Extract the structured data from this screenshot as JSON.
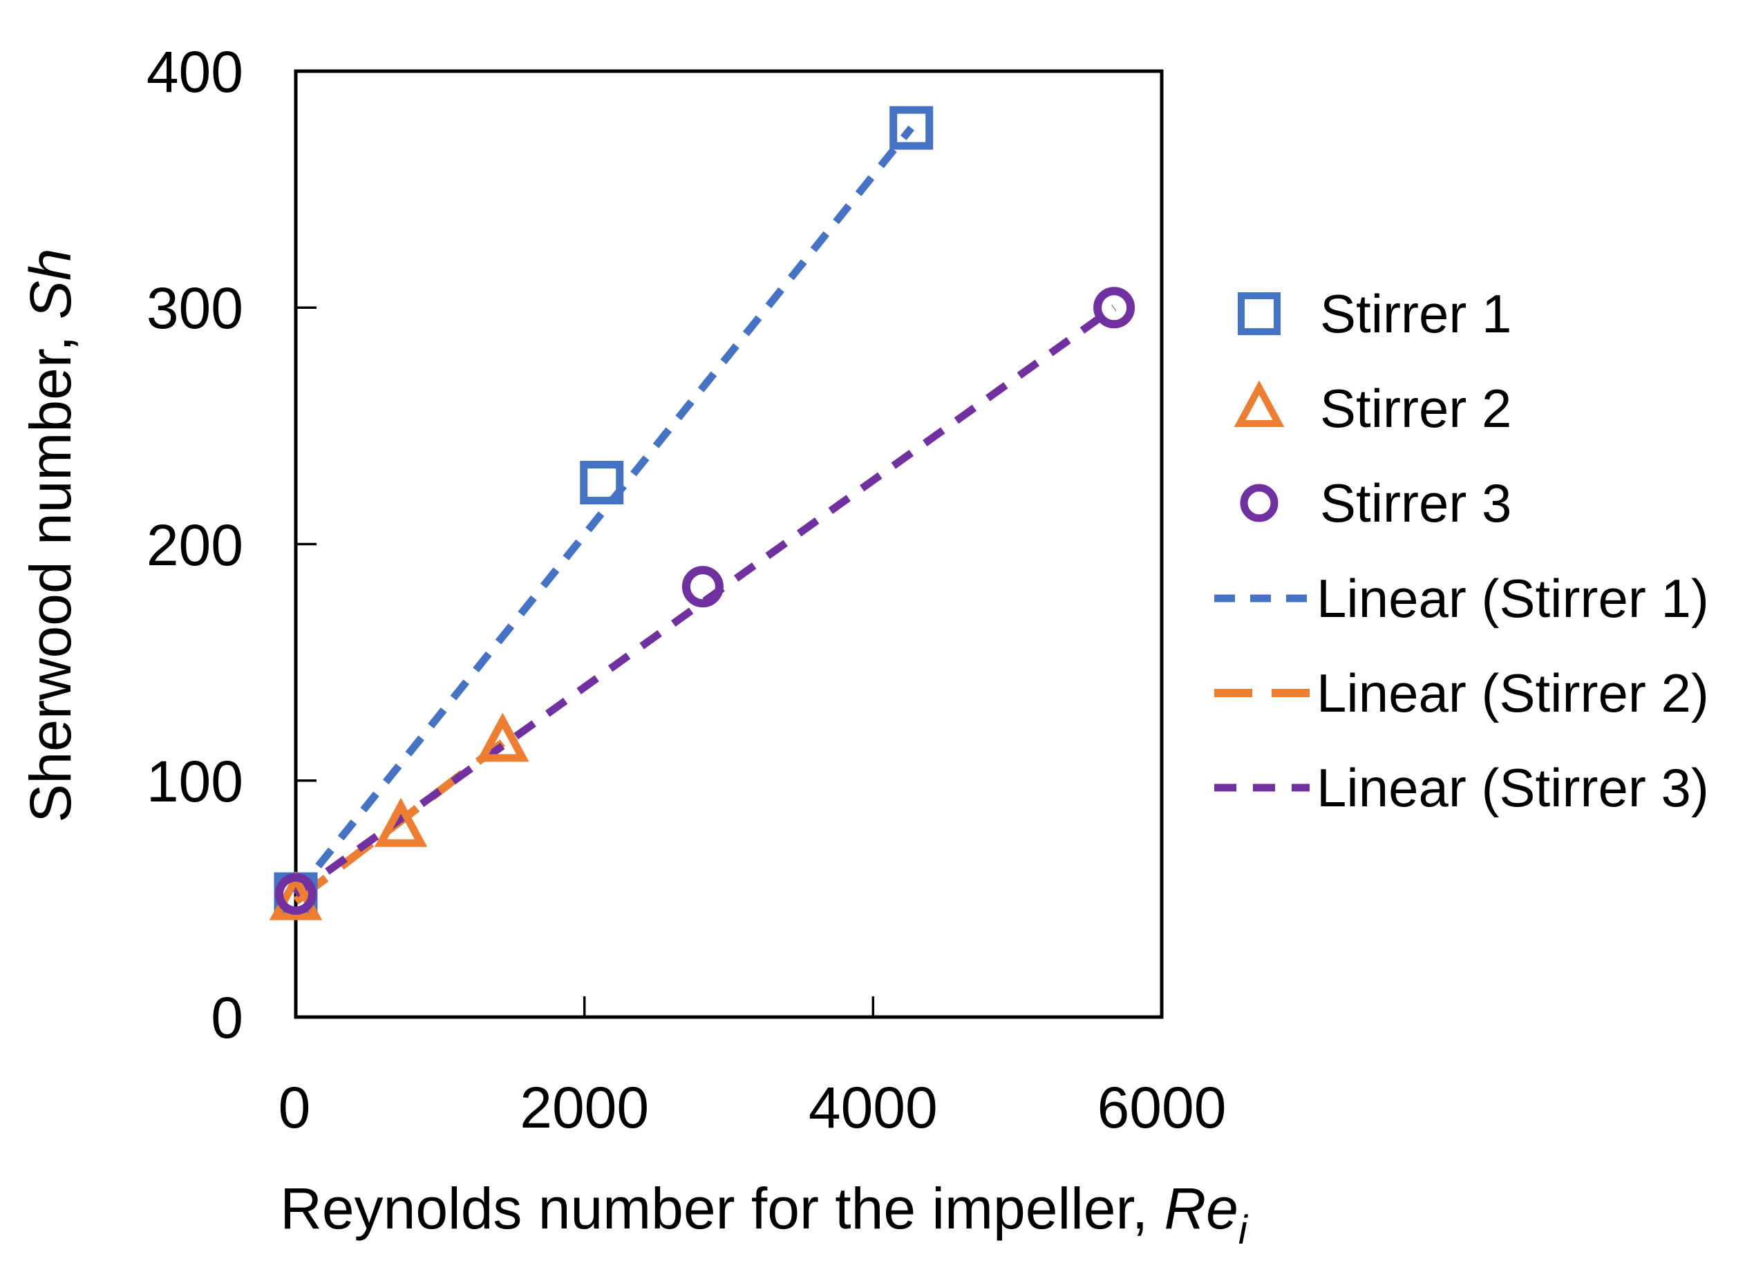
{
  "chart_data": {
    "type": "scatter",
    "title": "",
    "xlabel": "Reynolds number for the impeller, Re_i",
    "xlabel_main": "Reynolds number for the impeller, ",
    "xlabel_symbol": "Re",
    "xlabel_subscript": "i",
    "ylabel": "Sherwood number, Sh",
    "ylabel_main": "Sherwood number, ",
    "ylabel_symbol": "Sh",
    "xlim": [
      0,
      6000
    ],
    "ylim": [
      0,
      400
    ],
    "x_ticks": [
      0,
      2000,
      4000,
      6000
    ],
    "x_tick_labels": [
      "0",
      "2000",
      "4000",
      "6000"
    ],
    "y_ticks": [
      0,
      100,
      200,
      300,
      400
    ],
    "y_tick_labels": [
      "0",
      "100",
      "200",
      "300",
      "400"
    ],
    "grid": false,
    "legend_position": "right",
    "axis_color": "#000000",
    "series": [
      {
        "id": "stirrer-1",
        "name": "Stirrer 1",
        "marker": "square",
        "color": "#4472C4",
        "points": [
          [
            0,
            52
          ],
          [
            2120,
            226
          ],
          [
            4265,
            376
          ]
        ],
        "trendline": {
          "name": "Linear (Stirrer 1)",
          "style": "dashed",
          "dash": "30 22",
          "width": 11
        }
      },
      {
        "id": "stirrer-2",
        "name": "Stirrer 2",
        "marker": "triangle",
        "color": "#ED7D31",
        "points": [
          [
            0,
            49
          ],
          [
            728,
            80
          ],
          [
            1433,
            116
          ]
        ],
        "trendline": {
          "name": "Linear (Stirrer 2)",
          "style": "long-dashed",
          "dash": "55 28",
          "width": 12
        }
      },
      {
        "id": "stirrer-3",
        "name": "Stirrer 3",
        "marker": "circle",
        "color": "#7030A0",
        "points": [
          [
            0,
            52
          ],
          [
            2820,
            182
          ],
          [
            5670,
            300
          ]
        ],
        "trendline": {
          "name": "Linear (Stirrer 3)",
          "style": "dashed",
          "dash": "32 24",
          "width": 11
        }
      }
    ]
  }
}
